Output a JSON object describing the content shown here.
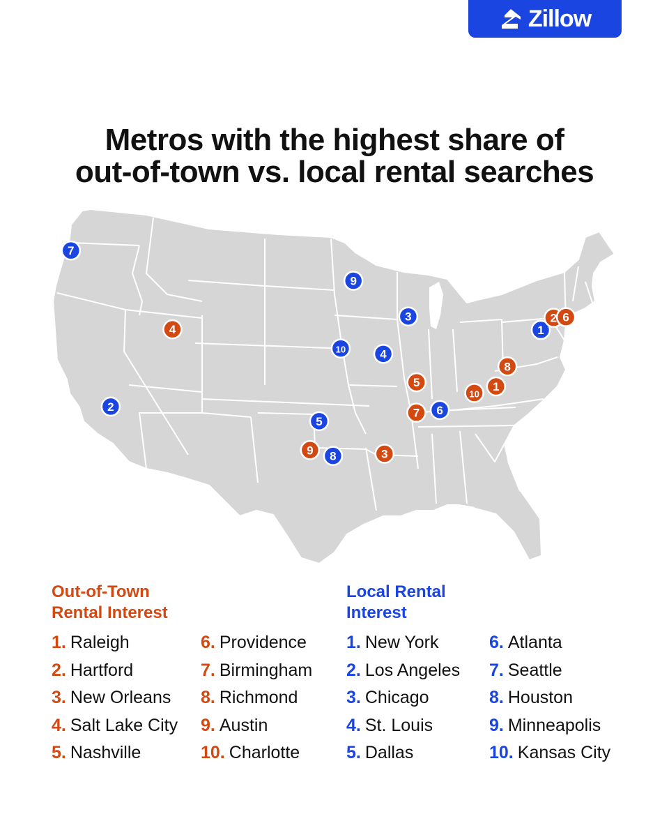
{
  "brand": {
    "name": "Zillow",
    "color": "#1a45e0",
    "logo_icon": "zillow-house-icon"
  },
  "title": {
    "line1": "Metros with the highest share of",
    "line2": "out-of-town vs. local rental searches"
  },
  "colors": {
    "out_of_town": "#d24a12",
    "local": "#1a45e0",
    "land": "#d6d6d6",
    "border": "#ffffff"
  },
  "markers": {
    "out_of_town": [
      {
        "rank": "1",
        "lat": 35.8,
        "lon": -78.6
      },
      {
        "rank": "2",
        "lat": 41.76,
        "lon": -72.68
      },
      {
        "rank": "3",
        "lat": 29.95,
        "lon": -90.07
      },
      {
        "rank": "4",
        "lat": 40.76,
        "lon": -111.89
      },
      {
        "rank": "5",
        "lat": 36.16,
        "lon": -86.78
      },
      {
        "rank": "6",
        "lat": 41.82,
        "lon": -71.41
      },
      {
        "rank": "7",
        "lat": 33.52,
        "lon": -86.8
      },
      {
        "rank": "8",
        "lat": 37.54,
        "lon": -77.43
      },
      {
        "rank": "9",
        "lat": 30.27,
        "lon": -97.74
      },
      {
        "rank": "10",
        "lat": 35.23,
        "lon": -80.84
      }
    ],
    "local": [
      {
        "rank": "1",
        "lat": 40.71,
        "lon": -74.0
      },
      {
        "rank": "2",
        "lat": 34.05,
        "lon": -118.24
      },
      {
        "rank": "3",
        "lat": 41.88,
        "lon": -87.63
      },
      {
        "rank": "4",
        "lat": 38.63,
        "lon": -90.2
      },
      {
        "rank": "5",
        "lat": 32.78,
        "lon": -96.8
      },
      {
        "rank": "6",
        "lat": 33.75,
        "lon": -84.39
      },
      {
        "rank": "7",
        "lat": 47.61,
        "lon": -122.33
      },
      {
        "rank": "8",
        "lat": 29.76,
        "lon": -95.37
      },
      {
        "rank": "9",
        "lat": 44.98,
        "lon": -93.27
      },
      {
        "rank": "10",
        "lat": 39.1,
        "lon": -94.58
      }
    ]
  },
  "legend": {
    "out_of_town": {
      "heading": "Out-of-Town\nRental Interest",
      "items": [
        {
          "rank": "1.",
          "city": "Raleigh"
        },
        {
          "rank": "2.",
          "city": "Hartford"
        },
        {
          "rank": "3.",
          "city": "New Orleans"
        },
        {
          "rank": "4.",
          "city": "Salt Lake City"
        },
        {
          "rank": "5.",
          "city": "Nashville"
        },
        {
          "rank": "6.",
          "city": "Providence"
        },
        {
          "rank": "7.",
          "city": "Birmingham"
        },
        {
          "rank": "8.",
          "city": "Richmond"
        },
        {
          "rank": "9.",
          "city": "Austin"
        },
        {
          "rank": "10.",
          "city": "Charlotte"
        }
      ]
    },
    "local": {
      "heading": "Local Rental\nInterest",
      "items": [
        {
          "rank": "1.",
          "city": "New York"
        },
        {
          "rank": "2.",
          "city": "Los Angeles"
        },
        {
          "rank": "3.",
          "city": "Chicago"
        },
        {
          "rank": "4.",
          "city": "St. Louis"
        },
        {
          "rank": "5.",
          "city": "Dallas"
        },
        {
          "rank": "6.",
          "city": "Atlanta"
        },
        {
          "rank": "7.",
          "city": "Seattle"
        },
        {
          "rank": "8.",
          "city": "Houston"
        },
        {
          "rank": "9.",
          "city": "Minneapolis"
        },
        {
          "rank": "10.",
          "city": "Kansas City"
        }
      ]
    }
  }
}
